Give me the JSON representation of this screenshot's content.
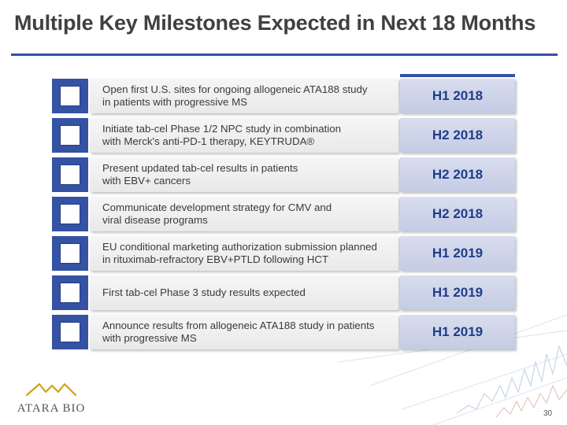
{
  "title": "Multiple Key Milestones Expected in Next 18 Months",
  "milestones": [
    {
      "description": "Open first U.S. sites for ongoing allogeneic ATA188 study\nin patients with progressive MS",
      "date": "H1 2018"
    },
    {
      "description": "Initiate tab-cel Phase 1/2 NPC study in combination\nwith Merck's anti-PD-1 therapy, KEYTRUDA®",
      "date": "H2 2018"
    },
    {
      "description": "Present updated tab-cel results in patients\nwith EBV+ cancers",
      "date": "H2 2018"
    },
    {
      "description": "Communicate development strategy for CMV and\nviral disease programs",
      "date": "H2 2018"
    },
    {
      "description": "EU conditional marketing authorization submission planned\nin rituximab-refractory EBV+PTLD following HCT",
      "date": "H1 2019"
    },
    {
      "description": "First tab-cel Phase 3 study results expected",
      "date": "H1 2019"
    },
    {
      "description": "Announce results from allogeneic ATA188 study in patients\nwith progressive MS",
      "date": "H1 2019"
    }
  ],
  "logo": {
    "text": "ATARA BIO"
  },
  "page_number": "30",
  "colors": {
    "accent": "#3552a3",
    "date_text": "#1f3d8a",
    "logo_gold": "#d4a017"
  }
}
